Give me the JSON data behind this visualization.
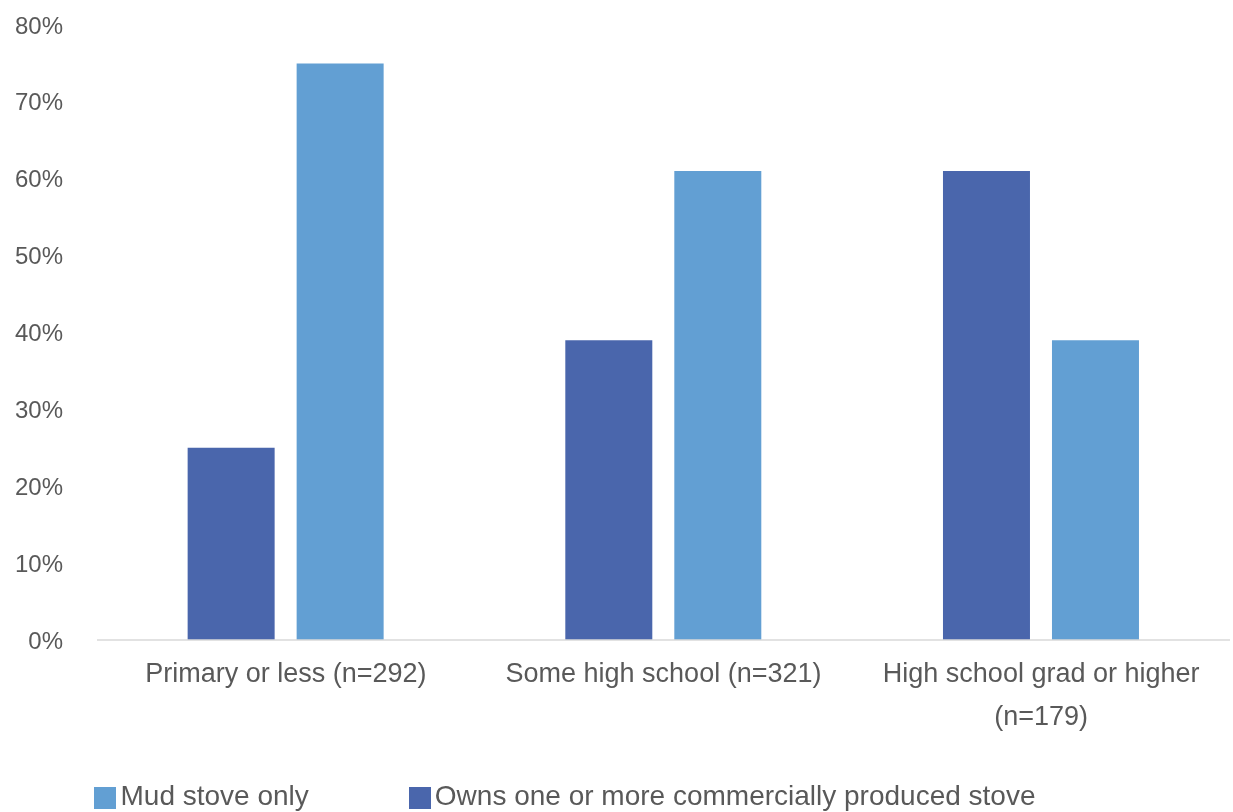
{
  "chart_data": {
    "type": "bar",
    "categories": [
      "Primary or less (n=292)",
      "Some high school (n=321)",
      "High school grad or higher (n=179)"
    ],
    "series": [
      {
        "name": "Owns one or more commercially produced stove",
        "color": "#4a66ac",
        "values": [
          25,
          39,
          61
        ]
      },
      {
        "name": "Mud stove only",
        "color": "#629fd3",
        "values": [
          75,
          61,
          39
        ]
      }
    ],
    "ylim": [
      0,
      80
    ],
    "yticks": [
      {
        "value": 0,
        "label": "0%"
      },
      {
        "value": 10,
        "label": "10%"
      },
      {
        "value": 20,
        "label": "20%"
      },
      {
        "value": 30,
        "label": "30%"
      },
      {
        "value": 40,
        "label": "40%"
      },
      {
        "value": 50,
        "label": "50%"
      },
      {
        "value": 60,
        "label": "60%"
      },
      {
        "value": 70,
        "label": "70%"
      },
      {
        "value": 80,
        "label": "80%"
      }
    ],
    "grid": false,
    "legend": "bottom"
  }
}
